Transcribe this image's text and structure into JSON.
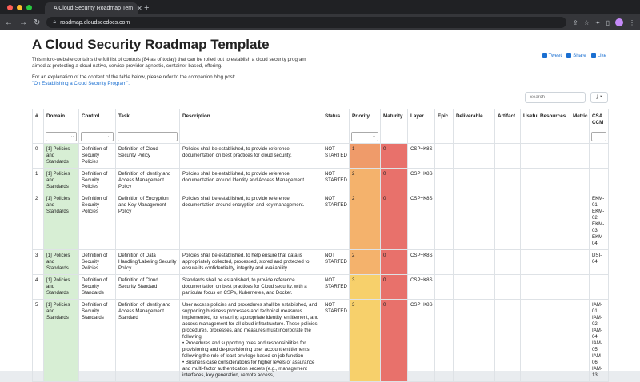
{
  "browser": {
    "tab_title": "A Cloud Security Roadmap Tem",
    "url": "roadmap.cloudsecdocs.com"
  },
  "page": {
    "title": "A Cloud Security Roadmap Template",
    "intro": "This micro-website contains the full list of controls (84 as of today) that can be rolled out to establish a cloud security program aimed at protecting a cloud native, service provider agnostic, container-based, offering.",
    "explanation": "For an explanation of the content of the table below, please refer to the companion blog post:",
    "blog_link": "\"On Establishing a Cloud Security Program\".",
    "social": {
      "tweet": "Tweet",
      "share": "Share",
      "like": "Like"
    },
    "search_placeholder": "Search",
    "export_label": "⤓ ▾"
  },
  "colors": {
    "domain_bg": "#d7eed4",
    "maturity_bg": "#e8716b",
    "priority_1": "#ef9b6a",
    "priority_2": "#f4b26c",
    "priority_3": "#f7d06b"
  },
  "table": {
    "headers": [
      "#",
      "Domain",
      "Control",
      "Task",
      "Description",
      "Status",
      "Priority",
      "Maturity",
      "Layer",
      "Epic",
      "Deliverable",
      "Artifact",
      "Useful Resources",
      "Metric",
      "CSA CCM"
    ],
    "rows": [
      {
        "id": "0",
        "domain": "[1] Policies and Standards",
        "control": "Definition of Security Policies",
        "task": "Definition of Cloud Security Policy",
        "description": "Policies shall be established, to provide reference documentation on best practices for cloud security.",
        "status": "NOT STARTED",
        "priority": "1",
        "maturity": "0",
        "layer": "CSP+K8S",
        "ccm": ""
      },
      {
        "id": "1",
        "domain": "[1] Policies and Standards",
        "control": "Definition of Security Policies",
        "task": "Definition of Identity and Access Management Policy",
        "description": "Policies shall be established, to provide reference documentation around Identity and Access Management.",
        "status": "NOT STARTED",
        "priority": "2",
        "maturity": "0",
        "layer": "CSP+K8S",
        "ccm": ""
      },
      {
        "id": "2",
        "domain": "[1] Policies and Standards",
        "control": "Definition of Security Policies",
        "task": "Definition of Encryption and Key Management Policy",
        "description": "Policies shall be established, to provide reference documentation around encryption and key management.",
        "status": "NOT STARTED",
        "priority": "2",
        "maturity": "0",
        "layer": "CSP+K8S",
        "ccm": "EKM-01\nEKM-02\nEKM-03\nEKM-04"
      },
      {
        "id": "3",
        "domain": "[1] Policies and Standards",
        "control": "Definition of Security Policies",
        "task": "Definition of Data Handling/Labeling Security Policy",
        "description": "Policies shall be established, to help ensure that data is appropriately collected, processed, stored and protected to ensure its confidentiality, integrity and availability.",
        "status": "NOT STARTED",
        "priority": "2",
        "maturity": "0",
        "layer": "CSP+K8S",
        "ccm": "DSI-04"
      },
      {
        "id": "4",
        "domain": "[1] Policies and Standards",
        "control": "Definition of Security Standards",
        "task": "Definition of Cloud Security Standard",
        "description": "Standards shall be established, to provide reference documentation on best practices for Cloud security, with a particular focus on CSPs, Kubernetes, and Docker.",
        "status": "NOT STARTED",
        "priority": "3",
        "maturity": "0",
        "layer": "CSP+K8S",
        "ccm": ""
      },
      {
        "id": "5",
        "domain": "[1] Policies and Standards",
        "control": "Definition of Security Standards",
        "task": "Definition of Identity and Access Management Standard",
        "description": "User access policies and procedures shall be established, and supporting business processes and technical measures implemented, for ensuring appropriate identity, entitlement, and access management for all cloud infrastructure. These policies, procedures, processes, and measures must incorporate the following:\n• Procedures and supporting roles and responsibilities for provisioning and de-provisioning user account entitlements following the rule of least privilege based on job function\n• Business case considerations for higher levels of assurance and multi-factor authentication secrets (e.g., management interfaces, key generation, remote access,",
        "status": "NOT STARTED",
        "priority": "3",
        "maturity": "0",
        "layer": "CSP+K8S",
        "ccm": "IAM-01\nIAM-02\nIAM-04\nIAM-05\nIAM-06\nIAM-13"
      }
    ]
  }
}
